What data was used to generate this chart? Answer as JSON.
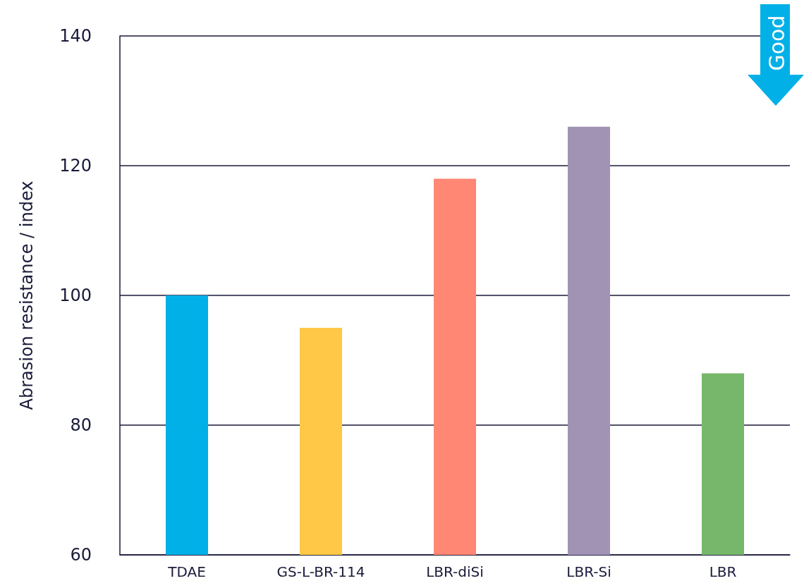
{
  "chart_data": {
    "type": "bar",
    "ylabel": "Abrasion resistance / index",
    "categories": [
      "TDAE",
      "GS-L-BR-114",
      "LBR-diSi",
      "LBR-Si",
      "LBR"
    ],
    "values": [
      100,
      95,
      118,
      126,
      88
    ],
    "colors": [
      "#00b0e6",
      "#ffc846",
      "#ff8773",
      "#a193b3",
      "#76b76b"
    ],
    "ylim": [
      60,
      140
    ],
    "yticks": [
      60,
      80,
      100,
      120,
      140
    ],
    "grid": "y",
    "annotations": [
      "Good"
    ]
  }
}
